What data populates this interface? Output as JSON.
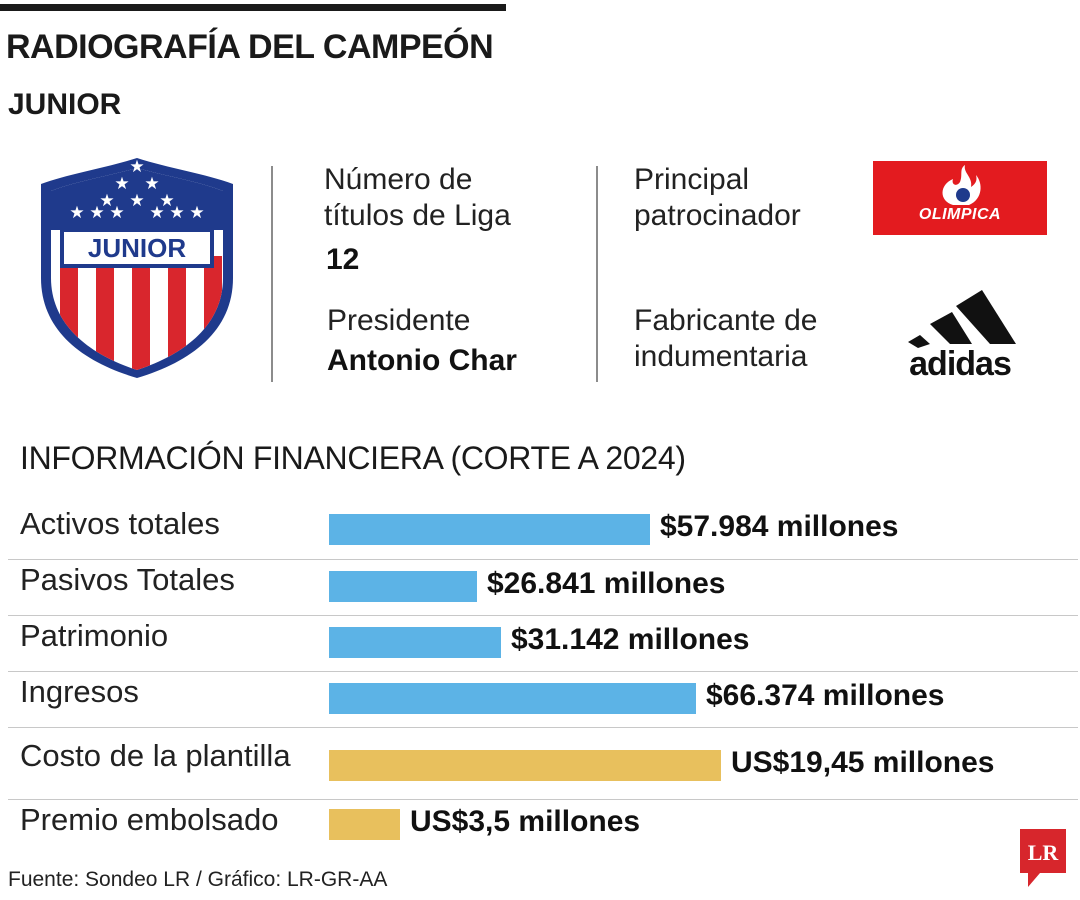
{
  "header": {
    "title": "RADIOGRAFÍA DEL CAMPEÓN",
    "subtitle": "JUNIOR"
  },
  "club": {
    "crest_text": "JUNIOR",
    "titles_label_1": "Número de",
    "titles_label_2": "títulos de Liga",
    "titles_value": "12",
    "president_label": "Presidente",
    "president_value": "Antonio Char",
    "sponsor_label_1": "Principal",
    "sponsor_label_2": "patrocinador",
    "sponsor_logo_text": "OLIMPICA",
    "manufacturer_label_1": "Fabricante de",
    "manufacturer_label_2": "indumentaria",
    "manufacturer_logo_text": "adidas"
  },
  "section_title": "INFORMACIÓN FINANCIERA (CORTE A 2024)",
  "chart_data": {
    "type": "bar",
    "orientation": "horizontal",
    "title": "INFORMACIÓN FINANCIERA (CORTE A 2024)",
    "categories": [
      "Activos totales",
      "Pasivos Totales",
      "Patrimonio",
      "Ingresos",
      "Costo de la plantilla",
      "Premio embolsado"
    ],
    "values": [
      57984,
      26841,
      31142,
      66374,
      19.45,
      3.5
    ],
    "units": [
      "COP millones",
      "COP millones",
      "COP millones",
      "COP millones",
      "US$ millones",
      "US$ millones"
    ],
    "labels": [
      "$57.984 millones",
      "$26.841 millones",
      "$31.142 millones",
      "$66.374 millones",
      "US$19,45 millones",
      "US$3,5 millones"
    ],
    "groups": [
      {
        "categories": [
          0,
          1,
          2,
          3
        ],
        "scale_max": 66374,
        "color": "#5cb3e6"
      },
      {
        "categories": [
          4,
          5
        ],
        "scale_max": 19.45,
        "color": "#e8c05d"
      }
    ],
    "grid": false,
    "legend": "none"
  },
  "footer": {
    "source": "Fuente: Sondeo LR / Gráfico: LR-GR-AA",
    "logo_text": "LR"
  },
  "colors": {
    "blue_bar": "#5cb3e6",
    "gold_bar": "#e8c05d",
    "olimpica_red": "#e31b1f",
    "junior_red": "#d9262d",
    "junior_blue": "#1f3a8c",
    "lr_red": "#d7262c"
  }
}
